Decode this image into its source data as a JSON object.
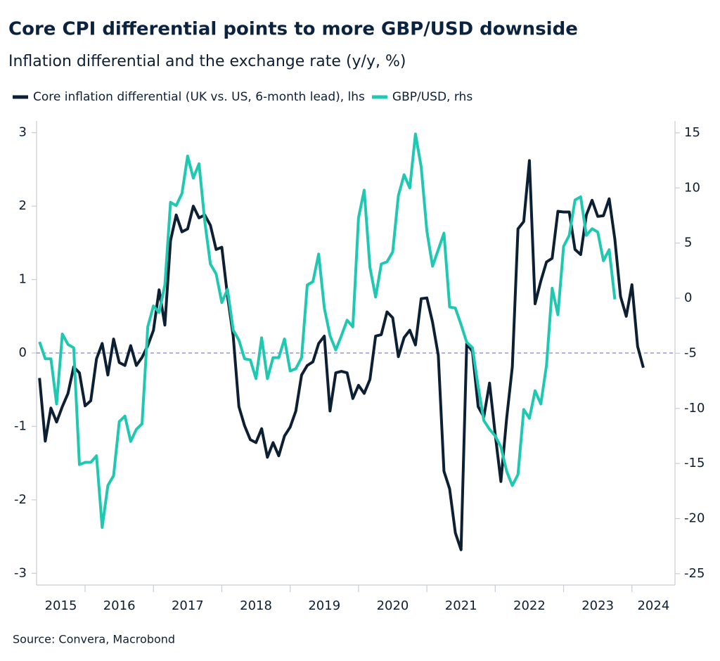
{
  "chart_data": {
    "type": "line",
    "title": "Core CPI differential points to more GBP/USD downside",
    "subtitle": "Inflation differential and the exchange rate (y/y, %)",
    "source": "Source: Convera, Macrobond",
    "xlim": [
      2015.29,
      2024.63
    ],
    "xticks": [
      {
        "value": 2015,
        "label": "2015"
      },
      {
        "value": 2016,
        "label": "2016"
      },
      {
        "value": 2017,
        "label": "2017"
      },
      {
        "value": 2018,
        "label": "2018"
      },
      {
        "value": 2019,
        "label": "2019"
      },
      {
        "value": 2020,
        "label": "2020"
      },
      {
        "value": 2021,
        "label": "2021"
      },
      {
        "value": 2022,
        "label": "2022"
      },
      {
        "value": 2023,
        "label": "2023"
      },
      {
        "value": 2024,
        "label": "2024"
      }
    ],
    "ylim": [
      -3.16,
      3.16
    ],
    "yticks": [
      -3,
      -2,
      -1,
      0,
      1,
      2,
      3
    ],
    "y2lim": [
      -26.03,
      16.08
    ],
    "y2ticks": [
      -25,
      -20,
      -15,
      -10,
      -5,
      0,
      5,
      10,
      15
    ],
    "reference_line": 0,
    "series": [
      {
        "name": "Core inflation differential (UK vs. US, 6-month lead), lhs",
        "color": "#0d1f33",
        "x": [
          2015.333,
          2015.417,
          2015.5,
          2015.583,
          2015.667,
          2015.75,
          2015.833,
          2015.917,
          2016,
          2016.083,
          2016.167,
          2016.25,
          2016.333,
          2016.417,
          2016.5,
          2016.583,
          2016.667,
          2016.75,
          2016.833,
          2016.917,
          2017,
          2017.083,
          2017.167,
          2017.25,
          2017.333,
          2017.417,
          2017.5,
          2017.583,
          2017.667,
          2017.75,
          2017.833,
          2017.917,
          2018,
          2018.083,
          2018.167,
          2018.25,
          2018.333,
          2018.417,
          2018.5,
          2018.583,
          2018.667,
          2018.75,
          2018.833,
          2018.917,
          2019,
          2019.083,
          2019.167,
          2019.25,
          2019.333,
          2019.417,
          2019.5,
          2019.583,
          2019.667,
          2019.75,
          2019.833,
          2019.917,
          2020,
          2020.083,
          2020.167,
          2020.25,
          2020.333,
          2020.417,
          2020.5,
          2020.583,
          2020.667,
          2020.75,
          2020.833,
          2020.917,
          2021,
          2021.083,
          2021.167,
          2021.25,
          2021.333,
          2021.417,
          2021.5,
          2021.583,
          2021.667,
          2021.75,
          2021.833,
          2021.917,
          2022,
          2022.083,
          2022.167,
          2022.25,
          2022.333,
          2022.417,
          2022.5,
          2022.583,
          2022.667,
          2022.75,
          2022.833,
          2022.917,
          2023,
          2023.083,
          2023.167,
          2023.25,
          2023.333,
          2023.417,
          2023.5,
          2023.583,
          2023.667,
          2023.75,
          2023.833,
          2023.917,
          2024,
          2024.083,
          2024.167
        ],
        "values": [
          -0.34,
          -1.2,
          -0.75,
          -0.94,
          -0.73,
          -0.55,
          -0.19,
          -0.27,
          -0.72,
          -0.65,
          -0.08,
          0.13,
          -0.3,
          0.19,
          -0.13,
          -0.17,
          0.1,
          -0.17,
          -0.06,
          0.1,
          0.31,
          0.86,
          0.38,
          1.53,
          1.88,
          1.65,
          1.69,
          2.0,
          1.84,
          1.88,
          1.74,
          1.41,
          1.44,
          0.78,
          0.23,
          -0.73,
          -0.99,
          -1.18,
          -1.22,
          -1.03,
          -1.42,
          -1.22,
          -1.4,
          -1.13,
          -1.01,
          -0.79,
          -0.3,
          -0.17,
          -0.12,
          0.13,
          0.23,
          -0.79,
          -0.27,
          -0.25,
          -0.27,
          -0.62,
          -0.44,
          -0.55,
          -0.36,
          0.23,
          0.25,
          0.56,
          0.48,
          -0.05,
          0.21,
          0.31,
          0.11,
          0.74,
          0.75,
          0.42,
          -0.03,
          -1.61,
          -1.85,
          -2.45,
          -2.68,
          0.13,
          0.02,
          -0.73,
          -0.87,
          -0.41,
          -1.11,
          -1.75,
          -0.89,
          -0.19,
          1.69,
          1.79,
          2.62,
          0.67,
          0.98,
          1.24,
          1.29,
          1.93,
          1.92,
          1.92,
          1.41,
          1.34,
          1.88,
          2.08,
          1.86,
          1.87,
          2.1,
          1.55,
          0.77,
          0.5,
          0.93,
          0.09,
          -0.2
        ]
      },
      {
        "name": "GBP/USD, rhs",
        "color": "#1fc8b0",
        "axis": "y2",
        "x": [
          2015.333,
          2015.417,
          2015.5,
          2015.583,
          2015.667,
          2015.75,
          2015.833,
          2015.917,
          2016,
          2016.083,
          2016.167,
          2016.25,
          2016.333,
          2016.417,
          2016.5,
          2016.583,
          2016.667,
          2016.75,
          2016.833,
          2016.917,
          2017,
          2017.083,
          2017.167,
          2017.25,
          2017.333,
          2017.417,
          2017.5,
          2017.583,
          2017.667,
          2017.75,
          2017.833,
          2017.917,
          2018,
          2018.083,
          2018.167,
          2018.25,
          2018.333,
          2018.417,
          2018.5,
          2018.583,
          2018.667,
          2018.75,
          2018.833,
          2018.917,
          2019,
          2019.083,
          2019.167,
          2019.25,
          2019.333,
          2019.417,
          2019.5,
          2019.583,
          2019.667,
          2019.75,
          2019.833,
          2019.917,
          2020,
          2020.083,
          2020.167,
          2020.25,
          2020.333,
          2020.417,
          2020.5,
          2020.583,
          2020.667,
          2020.75,
          2020.833,
          2020.917,
          2021,
          2021.083,
          2021.167,
          2021.25,
          2021.333,
          2021.417,
          2021.5,
          2021.583,
          2021.667,
          2021.75,
          2021.833,
          2021.917,
          2022,
          2022.083,
          2022.167,
          2022.25,
          2022.333,
          2022.417,
          2022.5,
          2022.583,
          2022.667,
          2022.75,
          2022.833,
          2022.917,
          2023,
          2023.083,
          2023.167,
          2023.25,
          2023.333,
          2023.417,
          2023.5,
          2023.583,
          2023.667,
          2023.75
        ],
        "values": [
          -3.96,
          -5.5,
          -5.5,
          -9.6,
          -3.25,
          -4.2,
          -4.5,
          -15.1,
          -14.9,
          -14.9,
          -14.3,
          -20.8,
          -17.0,
          -16.1,
          -11.2,
          -10.7,
          -13.0,
          -11.9,
          -11.4,
          -2.6,
          -0.7,
          -1.3,
          1.2,
          8.7,
          8.4,
          9.5,
          12.9,
          10.9,
          12.2,
          7.0,
          3.1,
          2.2,
          -0.4,
          0.8,
          -2.9,
          -3.8,
          -5.5,
          -5.6,
          -7.3,
          -3.6,
          -7.3,
          -5.4,
          -5.4,
          -3.7,
          -6.6,
          -6.4,
          -5.4,
          1.2,
          1.5,
          4.0,
          -0.9,
          -3.4,
          -4.7,
          -3.4,
          -2.0,
          -2.6,
          7.3,
          9.8,
          2.8,
          0.1,
          3.1,
          3.3,
          4.2,
          9.3,
          11.2,
          10.0,
          14.9,
          11.9,
          6.1,
          2.9,
          4.4,
          5.9,
          -0.8,
          -0.9,
          -2.4,
          -4.0,
          -4.5,
          -8.0,
          -11.1,
          -11.9,
          -12.5,
          -13.5,
          -15.7,
          -17.0,
          -16.0,
          -10.1,
          -10.9,
          -8.4,
          -9.6,
          -6.1,
          0.9,
          -1.5,
          4.7,
          5.7,
          8.9,
          9.2,
          5.7,
          6.3,
          6.0,
          3.4,
          4.4,
          -0.1
        ]
      }
    ]
  }
}
